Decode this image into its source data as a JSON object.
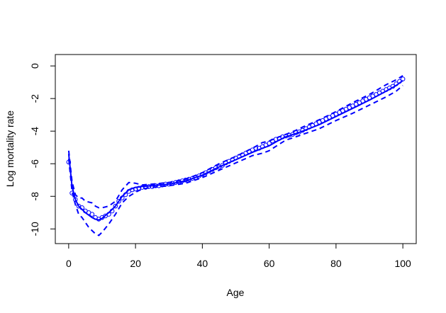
{
  "chart_data": {
    "type": "scatter",
    "title": "",
    "xlabel": "Age",
    "ylabel": "Log mortality rate",
    "xlim": [
      -4,
      104
    ],
    "ylim": [
      -10.9,
      0.7
    ],
    "xticks": [
      0,
      20,
      40,
      60,
      80,
      100
    ],
    "xtick_labels": [
      "0",
      "20",
      "40",
      "60",
      "80",
      "100"
    ],
    "yticks": [
      0,
      -2,
      -4,
      -6,
      -8,
      -10
    ],
    "ytick_labels": [
      "0",
      "-2",
      "-4",
      "-6",
      "-8",
      "-10"
    ],
    "grid": false,
    "legend": "none",
    "color": "#0000ff",
    "series": [
      {
        "kind": "points",
        "x": [
          0,
          1,
          2,
          3,
          4,
          5,
          6,
          7,
          8,
          9,
          10,
          11,
          12,
          13,
          14,
          15,
          16,
          17,
          18,
          19,
          20,
          21,
          22,
          23,
          24,
          25,
          26,
          27,
          28,
          29,
          30,
          31,
          32,
          33,
          34,
          35,
          36,
          37,
          38,
          39,
          40,
          41,
          42,
          43,
          44,
          45,
          46,
          47,
          48,
          49,
          50,
          51,
          52,
          53,
          54,
          55,
          56,
          57,
          58,
          59,
          60,
          61,
          62,
          63,
          64,
          65,
          66,
          67,
          68,
          69,
          70,
          71,
          72,
          73,
          74,
          75,
          76,
          77,
          78,
          79,
          80,
          81,
          82,
          83,
          84,
          85,
          86,
          87,
          88,
          89,
          90,
          91,
          92,
          93,
          94,
          95,
          96,
          97,
          98,
          99,
          100
        ],
        "y": [
          -5.9,
          -7.8,
          -8.2,
          -8.6,
          -8.7,
          -8.9,
          -9.0,
          -9.1,
          -9.3,
          -9.4,
          -9.3,
          -9.2,
          -9.1,
          -8.9,
          -8.6,
          -8.3,
          -8.1,
          -7.9,
          -7.7,
          -7.6,
          -7.55,
          -7.5,
          -7.45,
          -7.45,
          -7.4,
          -7.4,
          -7.35,
          -7.35,
          -7.3,
          -7.25,
          -7.25,
          -7.2,
          -7.15,
          -7.1,
          -7.05,
          -7.0,
          -6.95,
          -6.9,
          -6.85,
          -6.75,
          -6.65,
          -6.55,
          -6.45,
          -6.35,
          -6.25,
          -6.2,
          -6.1,
          -5.95,
          -5.85,
          -5.75,
          -5.65,
          -5.55,
          -5.45,
          -5.35,
          -5.25,
          -5.15,
          -5.05,
          -5.05,
          -4.95,
          -4.85,
          -4.75,
          -4.6,
          -4.5,
          -4.45,
          -4.35,
          -4.3,
          -4.25,
          -4.2,
          -4.1,
          -4.05,
          -3.95,
          -3.85,
          -3.75,
          -3.65,
          -3.55,
          -3.45,
          -3.35,
          -3.25,
          -3.15,
          -3.05,
          -2.95,
          -2.85,
          -2.75,
          -2.65,
          -2.55,
          -2.45,
          -2.35,
          -2.25,
          -2.15,
          -2.05,
          -1.95,
          -1.85,
          -1.75,
          -1.65,
          -1.55,
          -1.45,
          -1.35,
          -1.25,
          -1.1,
          -0.95,
          -0.8
        ]
      },
      {
        "kind": "solid-line",
        "x": [
          0,
          1,
          2,
          3,
          4,
          5,
          6,
          7,
          8,
          9,
          10,
          12,
          14,
          16,
          18,
          20,
          22,
          25,
          30,
          35,
          40,
          45,
          50,
          55,
          58,
          60,
          63,
          65,
          68,
          70,
          75,
          80,
          85,
          90,
          95,
          98,
          100
        ],
        "y": [
          -5.4,
          -7.4,
          -8.2,
          -8.6,
          -8.8,
          -9.0,
          -9.15,
          -9.3,
          -9.4,
          -9.45,
          -9.35,
          -9.0,
          -8.6,
          -8.0,
          -7.6,
          -7.45,
          -7.4,
          -7.35,
          -7.25,
          -7.05,
          -6.7,
          -6.2,
          -5.75,
          -5.3,
          -5.05,
          -4.9,
          -4.55,
          -4.35,
          -4.15,
          -4.0,
          -3.6,
          -3.1,
          -2.6,
          -2.1,
          -1.55,
          -1.2,
          -0.9
        ]
      },
      {
        "kind": "dashed-line",
        "x": [
          0,
          1,
          2,
          3,
          4,
          5,
          6,
          7,
          8,
          9,
          10,
          12,
          14,
          16,
          18,
          20,
          22,
          25,
          30,
          35,
          40,
          45,
          50,
          55,
          58,
          60,
          63,
          65,
          68,
          70,
          75,
          80,
          85,
          90,
          95,
          98,
          100
        ],
        "y": [
          -5.2,
          -7.1,
          -7.9,
          -8.1,
          -8.1,
          -8.3,
          -8.35,
          -8.4,
          -8.6,
          -8.7,
          -8.7,
          -8.6,
          -8.3,
          -7.6,
          -7.15,
          -7.2,
          -7.3,
          -7.25,
          -7.15,
          -6.95,
          -6.55,
          -6.0,
          -5.55,
          -5.05,
          -4.7,
          -4.6,
          -4.35,
          -4.2,
          -3.95,
          -3.75,
          -3.3,
          -2.8,
          -2.25,
          -1.75,
          -1.15,
          -0.85,
          -0.6
        ]
      },
      {
        "kind": "dashed-line",
        "x": [
          0,
          1,
          2,
          3,
          4,
          5,
          6,
          7,
          8,
          9,
          10,
          12,
          14,
          16,
          18,
          20,
          22,
          25,
          30,
          35,
          40,
          45,
          50,
          55,
          58,
          60,
          63,
          65,
          68,
          70,
          75,
          80,
          85,
          90,
          95,
          98,
          100
        ],
        "y": [
          -5.7,
          -7.7,
          -8.5,
          -9.1,
          -9.3,
          -9.6,
          -9.9,
          -10.1,
          -10.3,
          -10.4,
          -10.2,
          -9.7,
          -9.1,
          -8.4,
          -8.0,
          -7.75,
          -7.55,
          -7.45,
          -7.35,
          -7.2,
          -6.85,
          -6.4,
          -5.95,
          -5.5,
          -5.35,
          -5.2,
          -4.8,
          -4.55,
          -4.35,
          -4.2,
          -3.85,
          -3.35,
          -2.9,
          -2.4,
          -1.9,
          -1.55,
          -1.2
        ]
      }
    ]
  }
}
